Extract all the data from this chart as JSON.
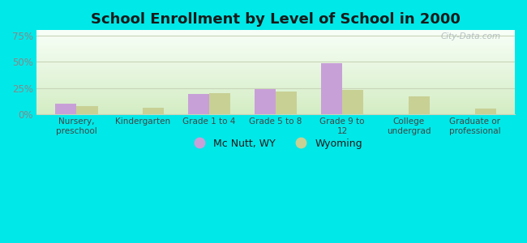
{
  "title": "School Enrollment by Level of School in 2000",
  "categories": [
    "Nursery,\npreschool",
    "Kindergarten",
    "Grade 1 to 4",
    "Grade 5 to 8",
    "Grade 9 to\n12",
    "College\nundergrad",
    "Graduate or\nprofessional"
  ],
  "mc_nutt": [
    10.0,
    0.0,
    19.0,
    24.0,
    48.5,
    0.0,
    0.0
  ],
  "wyoming": [
    8.0,
    6.5,
    20.0,
    21.5,
    23.0,
    17.0,
    5.5
  ],
  "mc_nutt_color": "#c8a0d8",
  "wyoming_color": "#c8d094",
  "background_outer": "#00e8e8",
  "grid_color": "#c8d4b8",
  "yticks": [
    0,
    25,
    50,
    75
  ],
  "ylim": [
    0,
    80
  ],
  "bar_width": 0.32,
  "title_fontsize": 13,
  "legend_labels": [
    "Mc Nutt, WY",
    "Wyoming"
  ],
  "watermark": "City-Data.com",
  "tick_color": "#888888",
  "label_color": "#444444"
}
